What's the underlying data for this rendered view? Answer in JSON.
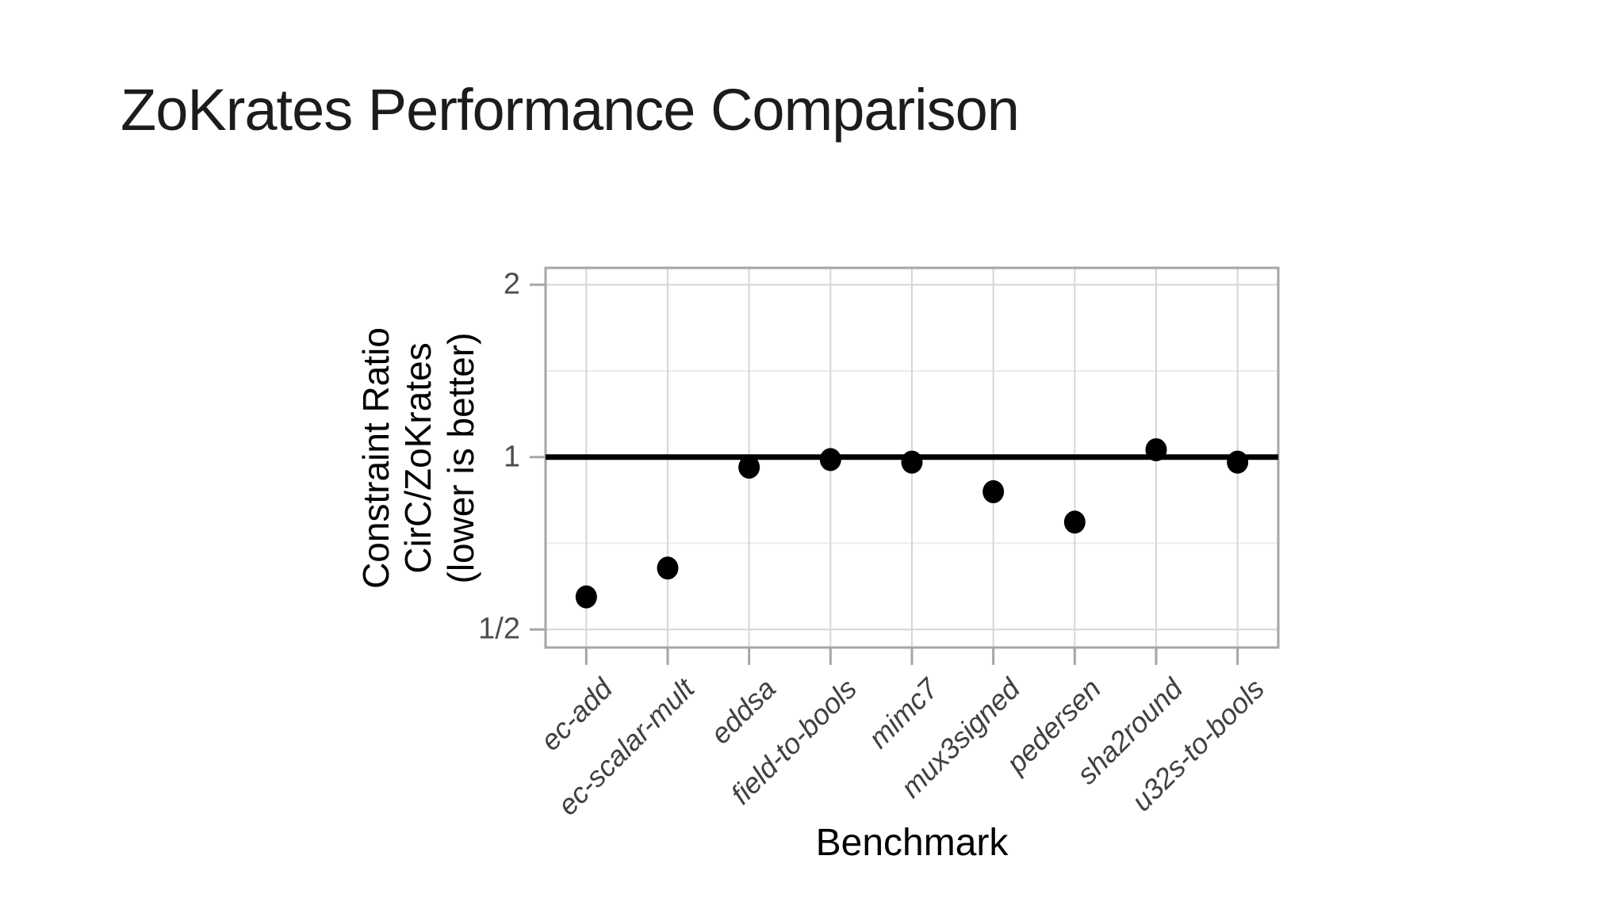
{
  "slide": {
    "title": "ZoKrates Performance Comparison"
  },
  "chart_data": {
    "type": "scatter",
    "title": "ZoKrates Performance Comparison",
    "xlabel": "Benchmark",
    "ylabel_lines": [
      "Constraint Ratio",
      "CirC/ZoKrates",
      "(lower is better)"
    ],
    "categories": [
      "ec-add",
      "ec-scalar-mult",
      "eddsa",
      "field-to-bools",
      "mimc7",
      "mux3signed",
      "pedersen",
      "sha2round",
      "u32s-to-bools"
    ],
    "values": [
      0.57,
      0.64,
      0.96,
      0.99,
      0.98,
      0.87,
      0.77,
      1.03,
      0.98
    ],
    "y_scale": "log2",
    "y_ticks": [
      {
        "value": 2,
        "label": "2"
      },
      {
        "value": 1,
        "label": "1"
      },
      {
        "value": 0.5,
        "label": "1/2"
      }
    ],
    "y_minor_gridlines": [
      1.4142,
      0.7071
    ],
    "ylim": [
      0.465,
      2.14
    ],
    "reference_line": 1,
    "grid": true,
    "legend": "none",
    "colors": {
      "point": "#000000",
      "reference_line": "#000000",
      "panel_border": "#a6a6a6",
      "grid_major": "#d6d6d6",
      "grid_minor": "#ebebeb",
      "tick_label": "#4d4d4d",
      "axis_title": "#000000",
      "title": "#1c1c1c"
    }
  }
}
